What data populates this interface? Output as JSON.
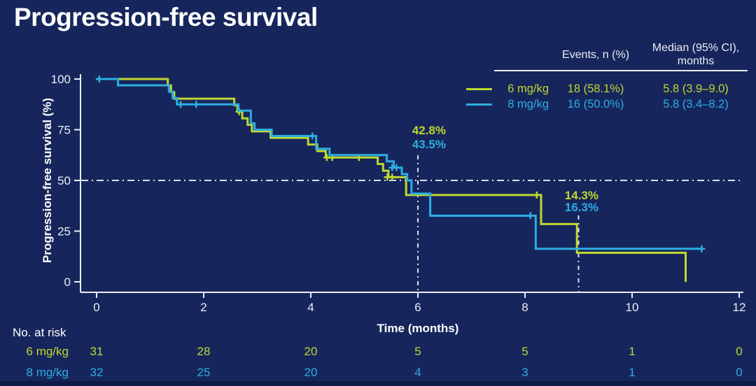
{
  "title": "Progression-free survival",
  "colors": {
    "background": "#16265C",
    "footer_band": "#0D1A45",
    "green": "#BED730",
    "cyan": "#2EADE2",
    "text_primary": "#FFFFFF",
    "text_axis": "#E9EEF6"
  },
  "legend": {
    "col_events_header": "Events, n (%)",
    "col_median_header_line1": "Median (95% CI),",
    "col_median_header_line2": "months",
    "rows": [
      {
        "label": "6 mg/kg",
        "events": "18 (58.1%)",
        "median": "5.8 (3.9–9.0)",
        "color_key": "green"
      },
      {
        "label": "8 mg/kg",
        "events": "16 (50.0%)",
        "median": "5.8 (3.4–8.2)",
        "color_key": "cyan"
      }
    ]
  },
  "at_risk": {
    "label": "No. at risk",
    "time_points": [
      0,
      2,
      4,
      6,
      8,
      10,
      12
    ],
    "rows": [
      {
        "label": "6 mg/kg",
        "color_key": "green",
        "values": [
          31,
          28,
          20,
          5,
          5,
          1,
          0
        ]
      },
      {
        "label": "8 mg/kg",
        "color_key": "cyan",
        "values": [
          32,
          25,
          20,
          4,
          3,
          1,
          0
        ]
      }
    ]
  },
  "chart_data": {
    "type": "line",
    "subtype": "kaplan-meier-step",
    "title": "Progression-free survival",
    "xlabel": "Time (months)",
    "ylabel": "Progression-free survival (%)",
    "xlim": [
      0,
      12
    ],
    "ylim": [
      0,
      100
    ],
    "xticks": [
      0,
      2,
      4,
      6,
      8,
      10,
      12
    ],
    "yticks": [
      0,
      25,
      50,
      75,
      100
    ],
    "grid": false,
    "reference_lines": {
      "horizontal_at_pct": 50,
      "vertical_at_months": [
        6,
        9
      ]
    },
    "series": [
      {
        "name": "6 mg/kg",
        "color_key": "green",
        "steps": [
          [
            0,
            100
          ],
          [
            1.33,
            96.8
          ],
          [
            1.39,
            93.5
          ],
          [
            1.45,
            90.3
          ],
          [
            2.57,
            87.1
          ],
          [
            2.63,
            83.9
          ],
          [
            2.72,
            80.6
          ],
          [
            2.82,
            77.4
          ],
          [
            2.9,
            74.2
          ],
          [
            3.25,
            71.0
          ],
          [
            3.95,
            67.7
          ],
          [
            4.12,
            64.5
          ],
          [
            4.28,
            61.3
          ],
          [
            5.25,
            58.1
          ],
          [
            5.35,
            54.8
          ],
          [
            5.45,
            51.6
          ],
          [
            5.78,
            42.8
          ],
          [
            8.3,
            28.5
          ],
          [
            8.97,
            14.3
          ],
          [
            11.0,
            0
          ]
        ],
        "censor_marks": [
          [
            2.66,
            83.9
          ],
          [
            4.3,
            61.3
          ],
          [
            4.4,
            61.3
          ],
          [
            4.9,
            61.3
          ],
          [
            5.43,
            51.6
          ],
          [
            5.52,
            51.6
          ],
          [
            8.22,
            42.8
          ]
        ]
      },
      {
        "name": "8 mg/kg",
        "color_key": "cyan",
        "steps": [
          [
            0,
            100
          ],
          [
            0.4,
            96.9
          ],
          [
            1.35,
            93.8
          ],
          [
            1.42,
            90.6
          ],
          [
            1.5,
            87.5
          ],
          [
            2.65,
            84.4
          ],
          [
            2.88,
            78.1
          ],
          [
            2.95,
            75.0
          ],
          [
            3.27,
            71.9
          ],
          [
            4.1,
            65.6
          ],
          [
            4.35,
            62.5
          ],
          [
            5.42,
            59.4
          ],
          [
            5.55,
            56.3
          ],
          [
            5.7,
            53.1
          ],
          [
            5.8,
            50.0
          ],
          [
            5.88,
            43.5
          ],
          [
            6.23,
            32.6
          ],
          [
            8.2,
            16.3
          ],
          [
            11.3,
            16.3
          ]
        ],
        "censor_marks": [
          [
            0.05,
            100
          ],
          [
            1.57,
            87.5
          ],
          [
            1.86,
            87.5
          ],
          [
            4.03,
            71.9
          ],
          [
            5.52,
            56.3
          ],
          [
            5.6,
            56.3
          ],
          [
            8.1,
            32.6
          ],
          [
            11.3,
            16.3
          ]
        ]
      }
    ],
    "annotations": [
      {
        "text": "42.8%",
        "series": "6 mg/kg",
        "at_month": 6
      },
      {
        "text": "43.5%",
        "series": "8 mg/kg",
        "at_month": 6
      },
      {
        "text": "14.3%",
        "series": "6 mg/kg",
        "at_month": 9
      },
      {
        "text": "16.3%",
        "series": "8 mg/kg",
        "at_month": 9
      }
    ]
  }
}
